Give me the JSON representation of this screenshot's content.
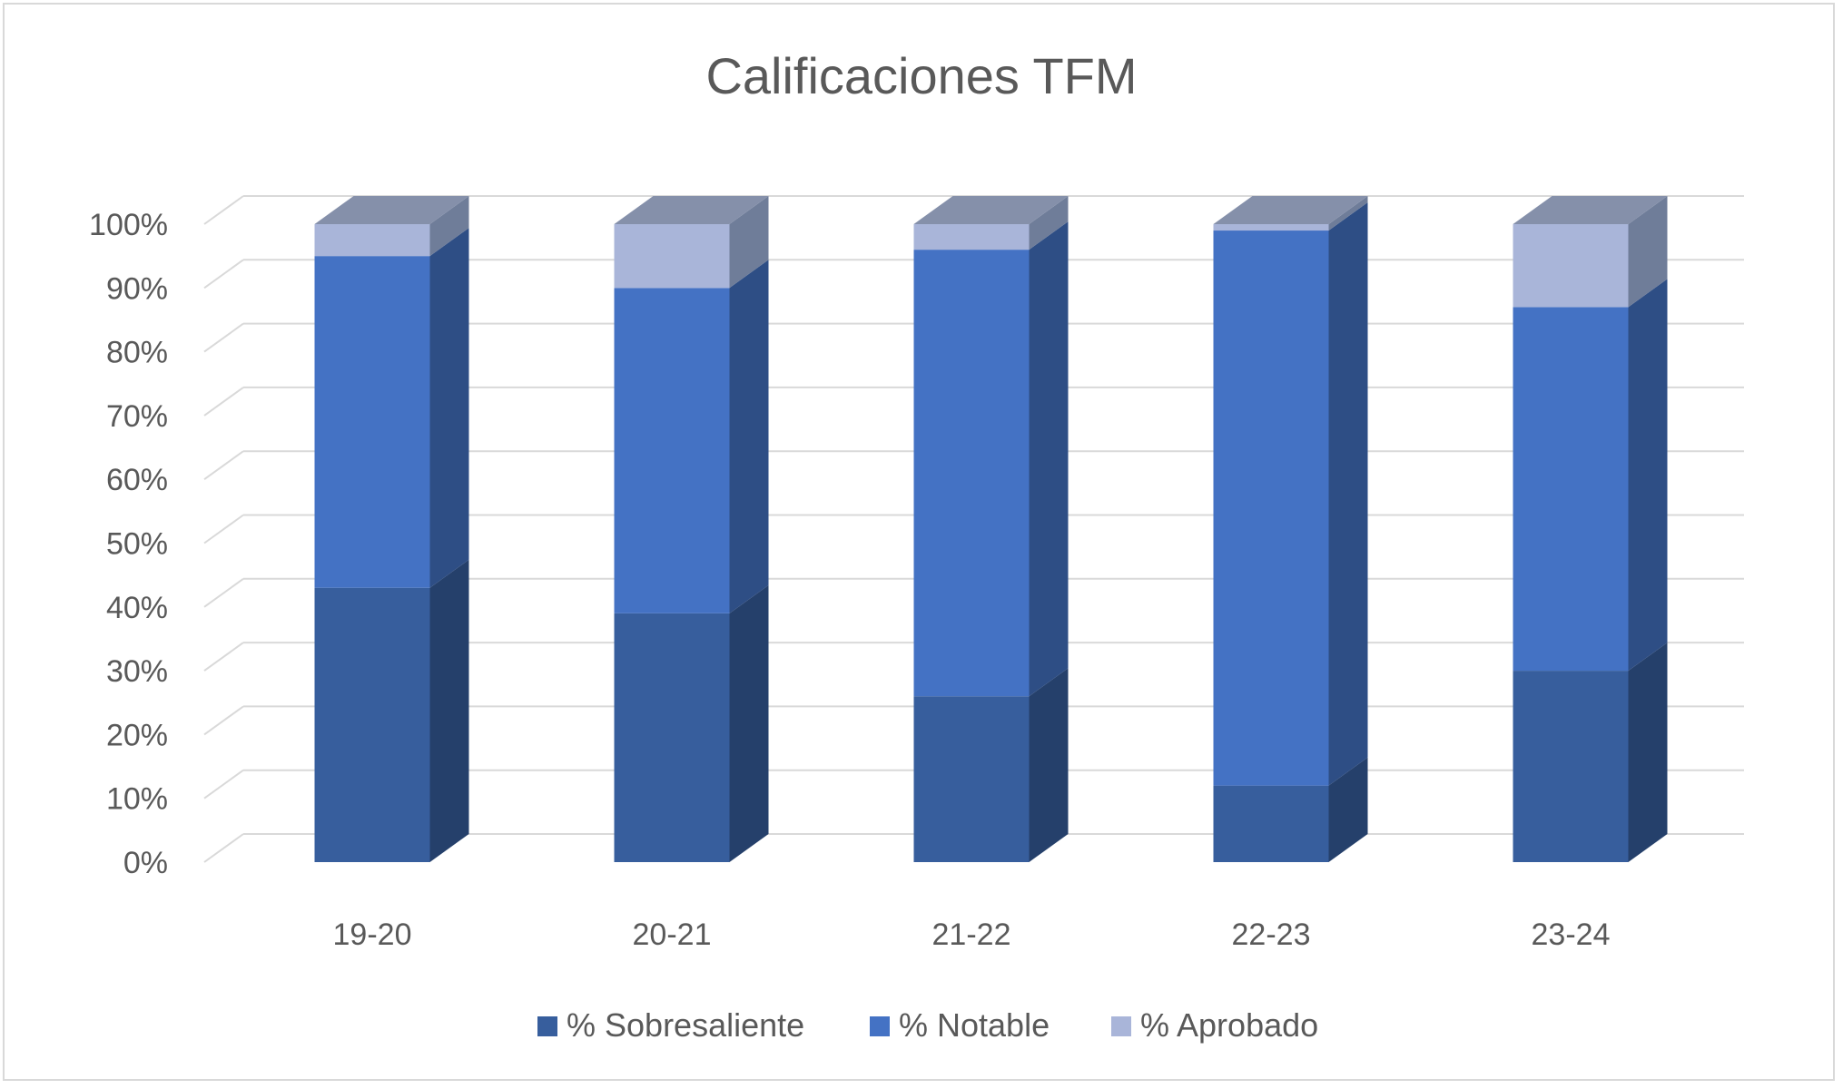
{
  "chart_data": {
    "type": "bar",
    "stacked": true,
    "three_d": true,
    "title": "Calificaciones TFM",
    "categories": [
      "19-20",
      "20-21",
      "21-22",
      "22-23",
      "23-24"
    ],
    "series": [
      {
        "name": "% Sobresaliente",
        "values": [
          43,
          39,
          26,
          12,
          30
        ],
        "color": "#375e9d"
      },
      {
        "name": "% Notable",
        "values": [
          52,
          51,
          70,
          87,
          57
        ],
        "color": "#4472c4"
      },
      {
        "name": "% Aprobado",
        "values": [
          5,
          10,
          4,
          1,
          13
        ],
        "color": "#a9b5d9"
      }
    ],
    "ylim": [
      0,
      100
    ],
    "yticks": [
      "0%",
      "10%",
      "20%",
      "30%",
      "40%",
      "50%",
      "60%",
      "70%",
      "80%",
      "90%",
      "100%"
    ],
    "grid": true,
    "legend": "bottom"
  }
}
